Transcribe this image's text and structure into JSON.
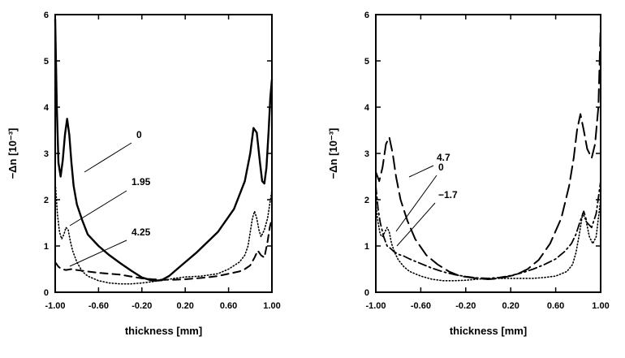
{
  "chart_data": [
    {
      "type": "line",
      "title": "",
      "xlabel": "thickness [mm]",
      "ylabel": "−Δn [10⁻³]",
      "xlim": [
        -1.0,
        1.0
      ],
      "ylim": [
        0,
        6
      ],
      "xticks": [
        -1.0,
        -0.6,
        -0.2,
        0.2,
        0.6,
        1.0
      ],
      "xtick_labels": [
        "-1.00",
        "-0.60",
        "-0.20",
        "0.20",
        "0.60",
        "1.00"
      ],
      "yticks": [
        0,
        1,
        2,
        3,
        4,
        5,
        6
      ],
      "ytick_labels": [
        "0",
        "1",
        "2",
        "3",
        "4",
        "5",
        "6"
      ],
      "grid": false,
      "series": [
        {
          "name": "0",
          "style": "solid",
          "x": [
            -1.0,
            -0.985,
            -0.97,
            -0.95,
            -0.93,
            -0.91,
            -0.89,
            -0.87,
            -0.85,
            -0.83,
            -0.8,
            -0.75,
            -0.7,
            -0.6,
            -0.5,
            -0.4,
            -0.3,
            -0.2,
            -0.1,
            -0.02,
            0.05,
            0.15,
            0.3,
            0.5,
            0.65,
            0.75,
            0.8,
            0.83,
            0.86,
            0.89,
            0.91,
            0.93,
            0.95,
            0.97,
            0.985,
            1.0
          ],
          "y": [
            5.9,
            4.0,
            2.8,
            2.5,
            2.85,
            3.4,
            3.75,
            3.4,
            2.8,
            2.3,
            1.9,
            1.55,
            1.25,
            1.0,
            0.8,
            0.63,
            0.47,
            0.32,
            0.25,
            0.26,
            0.35,
            0.55,
            0.85,
            1.3,
            1.8,
            2.4,
            3.0,
            3.55,
            3.45,
            2.8,
            2.4,
            2.35,
            2.7,
            3.5,
            4.2,
            4.6
          ]
        },
        {
          "name": "1.95",
          "style": "dotted",
          "x": [
            -1.0,
            -0.98,
            -0.96,
            -0.94,
            -0.92,
            -0.9,
            -0.88,
            -0.86,
            -0.84,
            -0.8,
            -0.75,
            -0.7,
            -0.6,
            -0.5,
            -0.4,
            -0.3,
            -0.2,
            -0.1,
            0.0,
            0.1,
            0.2,
            0.35,
            0.5,
            0.6,
            0.7,
            0.75,
            0.78,
            0.8,
            0.82,
            0.84,
            0.86,
            0.88,
            0.9,
            0.93,
            0.96,
            0.98,
            1.0
          ],
          "y": [
            2.4,
            1.7,
            1.3,
            1.15,
            1.25,
            1.4,
            1.35,
            1.1,
            0.9,
            0.65,
            0.45,
            0.35,
            0.25,
            0.2,
            0.18,
            0.18,
            0.2,
            0.23,
            0.26,
            0.3,
            0.33,
            0.35,
            0.4,
            0.5,
            0.65,
            0.8,
            1.0,
            1.3,
            1.6,
            1.75,
            1.6,
            1.35,
            1.2,
            1.35,
            1.6,
            1.9,
            2.2
          ]
        },
        {
          "name": "4.25",
          "style": "dashed",
          "x": [
            -1.0,
            -0.97,
            -0.94,
            -0.9,
            -0.85,
            -0.8,
            -0.7,
            -0.6,
            -0.5,
            -0.4,
            -0.3,
            -0.2,
            -0.1,
            0.0,
            0.1,
            0.2,
            0.3,
            0.4,
            0.5,
            0.6,
            0.7,
            0.75,
            0.8,
            0.84,
            0.87,
            0.9,
            0.93,
            0.96,
            0.98,
            1.0
          ],
          "y": [
            0.65,
            0.55,
            0.5,
            0.48,
            0.5,
            0.48,
            0.45,
            0.42,
            0.4,
            0.38,
            0.34,
            0.3,
            0.28,
            0.27,
            0.27,
            0.28,
            0.3,
            0.32,
            0.35,
            0.4,
            0.45,
            0.5,
            0.58,
            0.75,
            0.9,
            0.8,
            0.75,
            1.1,
            1.4,
            1.6
          ]
        }
      ],
      "annotations": [
        "0",
        "1.95",
        "4.25"
      ]
    },
    {
      "type": "line",
      "title": "",
      "xlabel": "thickness [mm]",
      "ylabel": "−Δn [10⁻³]",
      "xlim": [
        -1.0,
        1.0
      ],
      "ylim": [
        0,
        6
      ],
      "xticks": [
        -1.0,
        -0.6,
        -0.2,
        0.2,
        0.6,
        1.0
      ],
      "xtick_labels": [
        "-1.00",
        "-0.60",
        "-0.20",
        "0.20",
        "0.60",
        "1.00"
      ],
      "yticks": [
        0,
        1,
        2,
        3,
        4,
        5,
        6
      ],
      "ytick_labels": [
        "0",
        "1",
        "2",
        "3",
        "4",
        "5",
        "6"
      ],
      "grid": false,
      "series": [
        {
          "name": "4.7",
          "style": "long-dash",
          "x": [
            -1.0,
            -0.97,
            -0.94,
            -0.91,
            -0.88,
            -0.85,
            -0.82,
            -0.78,
            -0.72,
            -0.65,
            -0.55,
            -0.45,
            -0.35,
            -0.25,
            -0.1,
            0.0,
            0.1,
            0.25,
            0.35,
            0.45,
            0.55,
            0.65,
            0.72,
            0.76,
            0.79,
            0.82,
            0.85,
            0.88,
            0.92,
            0.95,
            0.98,
            1.0
          ],
          "y": [
            2.6,
            2.4,
            2.7,
            3.2,
            3.35,
            3.0,
            2.5,
            2.0,
            1.55,
            1.15,
            0.8,
            0.6,
            0.45,
            0.35,
            0.3,
            0.28,
            0.3,
            0.38,
            0.5,
            0.7,
            1.05,
            1.6,
            2.3,
            2.9,
            3.5,
            3.85,
            3.5,
            3.1,
            2.9,
            3.2,
            4.0,
            5.8
          ]
        },
        {
          "name": "0",
          "style": "dash-dot",
          "x": [
            -1.0,
            -0.98,
            -0.96,
            -0.93,
            -0.9,
            -0.87,
            -0.84,
            -0.8,
            -0.75,
            -0.7,
            -0.6,
            -0.5,
            -0.4,
            -0.3,
            -0.2,
            -0.1,
            0.0,
            0.1,
            0.2,
            0.3,
            0.4,
            0.5,
            0.6,
            0.68,
            0.74,
            0.78,
            0.82,
            0.85,
            0.88,
            0.92,
            0.96,
            1.0
          ],
          "y": [
            2.3,
            1.8,
            1.5,
            1.2,
            1.0,
            0.95,
            0.88,
            0.82,
            0.78,
            0.72,
            0.62,
            0.52,
            0.44,
            0.38,
            0.34,
            0.31,
            0.3,
            0.32,
            0.36,
            0.42,
            0.5,
            0.6,
            0.72,
            0.88,
            1.05,
            1.25,
            1.55,
            1.75,
            1.5,
            1.4,
            1.7,
            2.4
          ]
        },
        {
          "name": "−1.7",
          "style": "dotted",
          "x": [
            -1.0,
            -0.98,
            -0.96,
            -0.94,
            -0.92,
            -0.9,
            -0.88,
            -0.86,
            -0.83,
            -0.8,
            -0.75,
            -0.7,
            -0.6,
            -0.5,
            -0.4,
            -0.3,
            -0.2,
            -0.1,
            0.0,
            0.1,
            0.2,
            0.3,
            0.4,
            0.5,
            0.6,
            0.7,
            0.75,
            0.78,
            0.81,
            0.84,
            0.87,
            0.9,
            0.93,
            0.96,
            0.98,
            1.0
          ],
          "y": [
            1.9,
            1.5,
            1.25,
            1.2,
            1.3,
            1.4,
            1.3,
            1.05,
            0.85,
            0.7,
            0.55,
            0.45,
            0.35,
            0.28,
            0.25,
            0.25,
            0.26,
            0.28,
            0.3,
            0.3,
            0.3,
            0.3,
            0.3,
            0.32,
            0.35,
            0.45,
            0.6,
            0.85,
            1.25,
            1.7,
            1.55,
            1.2,
            1.05,
            1.2,
            1.6,
            2.0
          ]
        }
      ],
      "annotations": [
        "4.7",
        "0",
        "−1.7"
      ]
    }
  ]
}
